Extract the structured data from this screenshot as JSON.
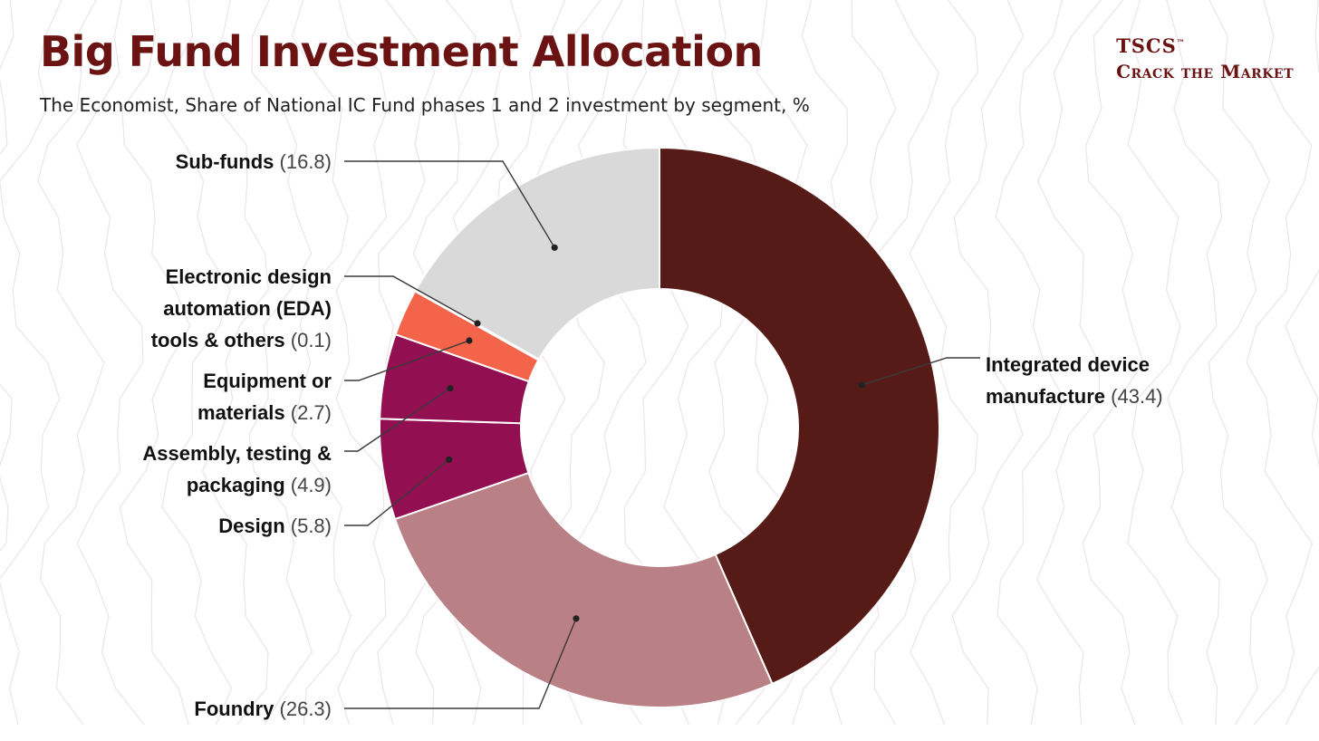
{
  "header": {
    "title": "Big Fund Investment Allocation",
    "subtitle": "The Economist, Share of National IC Fund phases 1 and 2 investment by segment, %"
  },
  "brand": {
    "line1": "TSCS",
    "trademark": "™",
    "line2": "Crack the Market"
  },
  "chart_data": {
    "type": "pie",
    "variant": "donut",
    "title": "Big Fund Investment Allocation",
    "unit": "%",
    "slices": [
      {
        "name": "Integrated device manufacture",
        "value": 43.4,
        "color": "#561b16",
        "label_lines": [
          "Integrated device",
          "manufacture"
        ],
        "value_text": "(43.4)"
      },
      {
        "name": "Foundry",
        "value": 26.3,
        "color": "#b98186",
        "label_lines": [
          "Foundry"
        ],
        "value_text": "(26.3)"
      },
      {
        "name": "Design",
        "value": 5.8,
        "color": "#921051",
        "label_lines": [
          "Design"
        ],
        "value_text": "(5.8)"
      },
      {
        "name": "Assembly, testing & packaging",
        "value": 4.9,
        "color": "#921051",
        "label_lines": [
          "Assembly, testing &",
          "packaging"
        ],
        "value_text": "(4.9)"
      },
      {
        "name": "Equipment or materials",
        "value": 2.7,
        "color": "#f4644a",
        "label_lines": [
          "Equipment or",
          "materials"
        ],
        "value_text": "(2.7)"
      },
      {
        "name": "Electronic design automation (EDA) tools & others",
        "value": 0.1,
        "color": "#f4644a",
        "label_lines": [
          "Electronic design",
          "automation (EDA)",
          "tools & others"
        ],
        "value_text": "(0.1)"
      },
      {
        "name": "Sub-funds",
        "value": 16.8,
        "color": "#d9d9d9",
        "label_lines": [
          "Sub-funds"
        ],
        "value_text": "(16.8)"
      }
    ]
  }
}
